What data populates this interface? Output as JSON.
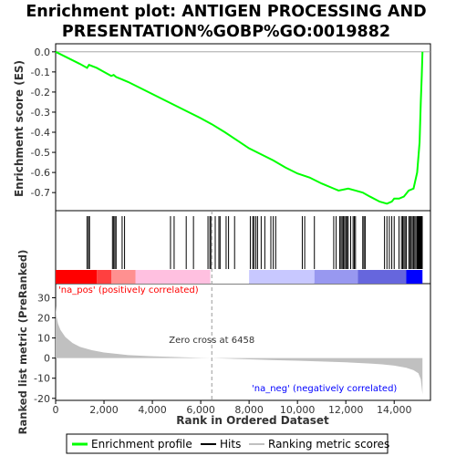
{
  "chart_data": {
    "type": "line",
    "title_lines": [
      "Enrichment plot: ANTIGEN PROCESSING AND",
      "PRESENTATION%GOBP%GO:0019882"
    ],
    "es_panel": {
      "ylabel": "Enrichment score (ES)",
      "ylim": [
        -0.79,
        0.04
      ],
      "yticks": [
        0.0,
        -0.1,
        -0.2,
        -0.3,
        -0.4,
        -0.5,
        -0.6,
        -0.7
      ],
      "ytick_labels": [
        "0.0",
        "-0.1",
        "-0.2",
        "-0.3",
        "-0.4",
        "-0.5",
        "-0.6",
        "-0.7"
      ],
      "line_color": "#00ff00",
      "profile": {
        "x": [
          0,
          500,
          1000,
          1300,
          1380,
          1700,
          2000,
          2300,
          2400,
          2500,
          2700,
          3000,
          3500,
          4000,
          4500,
          5000,
          5500,
          6000,
          6458,
          7000,
          7500,
          8000,
          8500,
          9000,
          9500,
          10000,
          10500,
          11000,
          11500,
          11700,
          11900,
          12100,
          12400,
          12700,
          13000,
          13400,
          13700,
          13900,
          14000,
          14200,
          14400,
          14600,
          14800,
          14950,
          15050,
          15100,
          15140,
          15170
        ],
        "y": [
          0.0,
          -0.03,
          -0.06,
          -0.08,
          -0.065,
          -0.08,
          -0.1,
          -0.12,
          -0.115,
          -0.125,
          -0.135,
          -0.15,
          -0.18,
          -0.21,
          -0.24,
          -0.27,
          -0.3,
          -0.33,
          -0.36,
          -0.4,
          -0.44,
          -0.48,
          -0.51,
          -0.54,
          -0.575,
          -0.605,
          -0.625,
          -0.655,
          -0.68,
          -0.69,
          -0.685,
          -0.68,
          -0.69,
          -0.7,
          -0.72,
          -0.745,
          -0.755,
          -0.745,
          -0.73,
          -0.73,
          -0.72,
          -0.69,
          -0.68,
          -0.6,
          -0.45,
          -0.25,
          -0.12,
          0.0
        ]
      }
    },
    "hits": [
      1300,
      1360,
      1400,
      2350,
      2400,
      2450,
      2500,
      2750,
      2850,
      4750,
      4900,
      5400,
      5700,
      6300,
      6380,
      6420,
      6600,
      6750,
      6800,
      7050,
      7150,
      7400,
      8050,
      8150,
      8200,
      8280,
      8350,
      8500,
      8650,
      8900,
      9000,
      9100,
      10200,
      10300,
      10700,
      11500,
      11600,
      11750,
      11800,
      11850,
      11900,
      11950,
      12000,
      12050,
      12100,
      12200,
      12300,
      12350,
      12400,
      12700,
      12750,
      12800,
      13600,
      13700,
      13800,
      13900,
      14000,
      14200,
      14300,
      14350,
      14400,
      14450,
      14500,
      14600,
      14650,
      14700,
      14750,
      14800,
      14850,
      14900,
      14950,
      14980,
      15000,
      15020,
      15040,
      15060,
      15080,
      15100,
      15120,
      15140,
      15160
    ],
    "metric_panel": {
      "ylabel": "Ranked list metric (PreRanked)",
      "ylim": [
        -21,
        37
      ],
      "yticks": [
        30,
        20,
        10,
        0,
        -10,
        -20
      ],
      "ytick_labels": [
        "30",
        "20",
        "10",
        "0",
        "-10",
        "-20"
      ],
      "curve": {
        "x": [
          0,
          30,
          100,
          200,
          400,
          700,
          1000,
          1500,
          2000,
          3000,
          4000,
          5000,
          6000,
          6458,
          7000,
          8000,
          9000,
          10000,
          11000,
          12000,
          13000,
          13500,
          14000,
          14500,
          14800,
          15000,
          15100,
          15170
        ],
        "y": [
          26,
          21,
          17,
          14,
          10.5,
          7.5,
          5.6,
          3.9,
          2.8,
          1.5,
          0.9,
          0.5,
          0.15,
          0,
          -0.2,
          -0.6,
          -1.0,
          -1.3,
          -1.7,
          -2.1,
          -2.7,
          -3.1,
          -3.7,
          -4.8,
          -6.0,
          -7.5,
          -10.5,
          -18
        ]
      },
      "fill_color": "#c0c0c0",
      "zero_cross_label": "Zero cross at 6458",
      "zero_cross_x": 6458,
      "pos_label": "'na_pos' (positively correlated)",
      "pos_color": "#ff0000",
      "neg_label": "'na_neg' (negatively correlated)",
      "neg_color": "#0000ff"
    },
    "heatmap_segments": [
      {
        "x0": 0,
        "x1": 1700,
        "color": "#ff0000"
      },
      {
        "x0": 1700,
        "x1": 2300,
        "color": "#ff4040"
      },
      {
        "x0": 2300,
        "x1": 3300,
        "color": "#ff9090"
      },
      {
        "x0": 3300,
        "x1": 6400,
        "color": "#ffc0e0"
      },
      {
        "x0": 6400,
        "x1": 8000,
        "color": "#ffffff"
      },
      {
        "x0": 8000,
        "x1": 10700,
        "color": "#c8c8ff"
      },
      {
        "x0": 10700,
        "x1": 12500,
        "color": "#9898f0"
      },
      {
        "x0": 12500,
        "x1": 14500,
        "color": "#6666dd"
      },
      {
        "x0": 14500,
        "x1": 15170,
        "color": "#0000ff"
      }
    ],
    "xlabel": "Rank in Ordered Dataset",
    "xlim": [
      0,
      15500
    ],
    "xticks": [
      0,
      2000,
      4000,
      6000,
      8000,
      10000,
      12000,
      14000
    ],
    "xtick_labels": [
      "0",
      "2,000",
      "4,000",
      "6,000",
      "8,000",
      "10,000",
      "12,000",
      "14,000"
    ],
    "legend": [
      {
        "label": "Enrichment profile",
        "color": "#00ff00"
      },
      {
        "label": "Hits",
        "color": "#000000"
      },
      {
        "label": "Ranking metric scores",
        "color": "#c0c0c0"
      }
    ]
  }
}
